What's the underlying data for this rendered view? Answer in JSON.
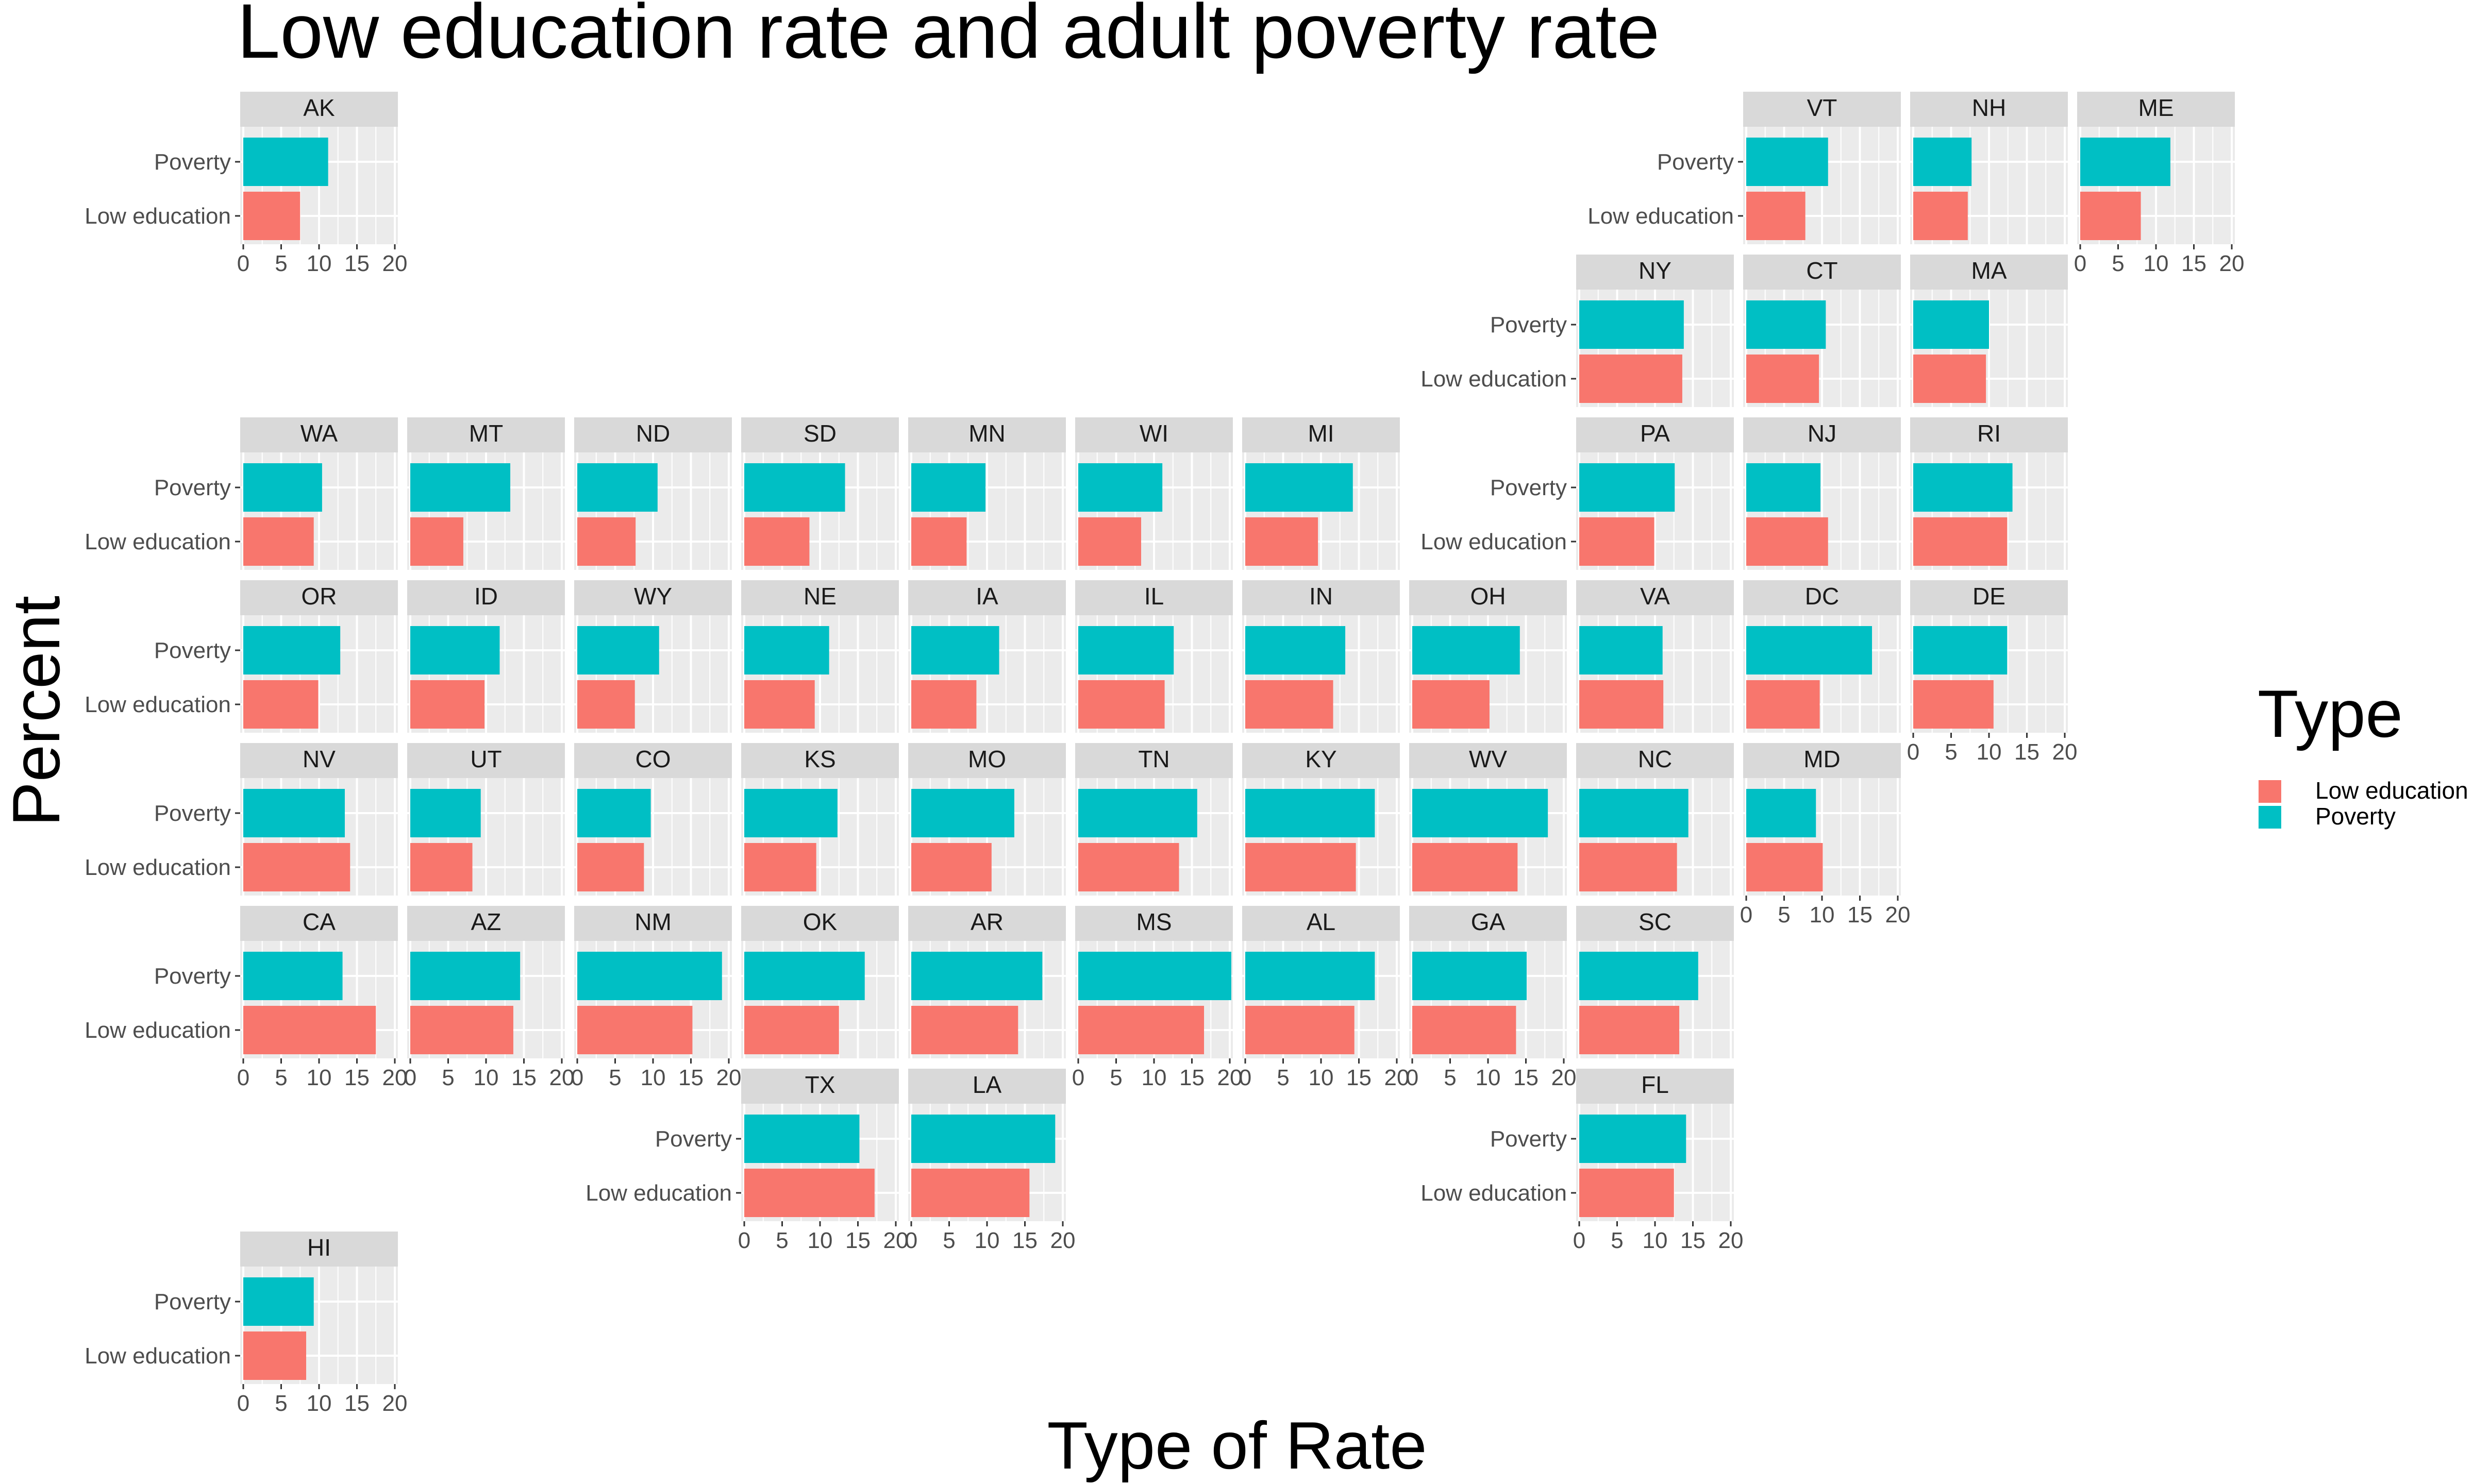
{
  "chart_data": {
    "type": "bar",
    "orientation": "horizontal",
    "layout": "geofacet-us-state-grid",
    "title": "Low education rate and adult poverty rate",
    "xlabel": "Type of Rate",
    "ylabel": "Percent",
    "categories": [
      "Low education",
      "Poverty"
    ],
    "xlim": [
      0,
      20
    ],
    "xticks": [
      0,
      5,
      10,
      15,
      20
    ],
    "grid": true,
    "legend": {
      "title": "Type",
      "position": "right",
      "entries": [
        {
          "label": "Low education",
          "color": "#F8766D"
        },
        {
          "label": "Poverty",
          "color": "#00BFC4"
        }
      ]
    },
    "colors": {
      "Low education": "#F8766D",
      "Poverty": "#00BFC4"
    },
    "states": [
      {
        "state": "AK",
        "low_education": 7.5,
        "poverty": 11.2
      },
      {
        "state": "VT",
        "low_education": 7.8,
        "poverty": 10.8
      },
      {
        "state": "NH",
        "low_education": 7.2,
        "poverty": 7.7
      },
      {
        "state": "ME",
        "low_education": 8.0,
        "poverty": 11.9
      },
      {
        "state": "NY",
        "low_education": 13.6,
        "poverty": 13.8
      },
      {
        "state": "CT",
        "low_education": 9.6,
        "poverty": 10.5
      },
      {
        "state": "MA",
        "low_education": 9.6,
        "poverty": 10.0
      },
      {
        "state": "WA",
        "low_education": 9.3,
        "poverty": 10.4
      },
      {
        "state": "MT",
        "low_education": 7.0,
        "poverty": 13.2
      },
      {
        "state": "ND",
        "low_education": 7.7,
        "poverty": 10.6
      },
      {
        "state": "SD",
        "low_education": 8.6,
        "poverty": 13.3
      },
      {
        "state": "MN",
        "low_education": 7.3,
        "poverty": 9.8
      },
      {
        "state": "WI",
        "low_education": 8.3,
        "poverty": 11.1
      },
      {
        "state": "MI",
        "low_education": 9.6,
        "poverty": 14.2
      },
      {
        "state": "PA",
        "low_education": 9.9,
        "poverty": 12.6
      },
      {
        "state": "NJ",
        "low_education": 10.8,
        "poverty": 9.8
      },
      {
        "state": "RI",
        "low_education": 12.4,
        "poverty": 13.1
      },
      {
        "state": "OR",
        "low_education": 9.9,
        "poverty": 12.8
      },
      {
        "state": "ID",
        "low_education": 9.8,
        "poverty": 11.8
      },
      {
        "state": "WY",
        "low_education": 7.6,
        "poverty": 10.8
      },
      {
        "state": "NE",
        "low_education": 9.3,
        "poverty": 11.2
      },
      {
        "state": "IA",
        "low_education": 8.6,
        "poverty": 11.6
      },
      {
        "state": "IL",
        "low_education": 11.4,
        "poverty": 12.6
      },
      {
        "state": "IN",
        "low_education": 11.6,
        "poverty": 13.2
      },
      {
        "state": "OH",
        "low_education": 10.2,
        "poverty": 14.2
      },
      {
        "state": "VA",
        "low_education": 11.1,
        "poverty": 11.0
      },
      {
        "state": "DC",
        "low_education": 9.7,
        "poverty": 16.6
      },
      {
        "state": "DE",
        "low_education": 10.6,
        "poverty": 12.4
      },
      {
        "state": "NV",
        "low_education": 14.1,
        "poverty": 13.4
      },
      {
        "state": "UT",
        "low_education": 8.2,
        "poverty": 9.3
      },
      {
        "state": "CO",
        "low_education": 8.8,
        "poverty": 9.7
      },
      {
        "state": "KS",
        "low_education": 9.5,
        "poverty": 12.3
      },
      {
        "state": "MO",
        "low_education": 10.6,
        "poverty": 13.6
      },
      {
        "state": "TN",
        "low_education": 13.3,
        "poverty": 15.7
      },
      {
        "state": "KY",
        "low_education": 14.6,
        "poverty": 17.1
      },
      {
        "state": "WV",
        "low_education": 13.9,
        "poverty": 17.9
      },
      {
        "state": "NC",
        "low_education": 12.9,
        "poverty": 14.4
      },
      {
        "state": "MD",
        "low_education": 10.1,
        "poverty": 9.2
      },
      {
        "state": "CA",
        "low_education": 17.5,
        "poverty": 13.1
      },
      {
        "state": "AZ",
        "low_education": 13.6,
        "poverty": 14.5
      },
      {
        "state": "NM",
        "low_education": 15.2,
        "poverty": 19.1
      },
      {
        "state": "OK",
        "low_education": 12.5,
        "poverty": 15.9
      },
      {
        "state": "AR",
        "low_education": 14.1,
        "poverty": 17.3
      },
      {
        "state": "MS",
        "low_education": 16.6,
        "poverty": 20.2
      },
      {
        "state": "AL",
        "low_education": 14.4,
        "poverty": 17.1
      },
      {
        "state": "GA",
        "low_education": 13.7,
        "poverty": 15.1
      },
      {
        "state": "SC",
        "low_education": 13.2,
        "poverty": 15.7
      },
      {
        "state": "TX",
        "low_education": 17.2,
        "poverty": 15.2
      },
      {
        "state": "LA",
        "low_education": 15.6,
        "poverty": 19.0
      },
      {
        "state": "FL",
        "low_education": 12.5,
        "poverty": 14.1
      },
      {
        "state": "HI",
        "low_education": 8.3,
        "poverty": 9.3
      }
    ]
  }
}
